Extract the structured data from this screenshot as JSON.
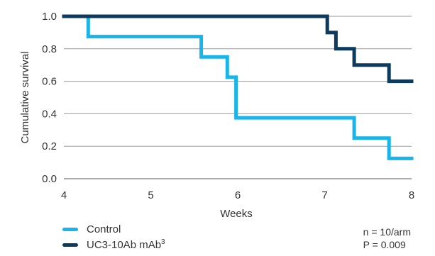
{
  "chart_data": {
    "type": "line",
    "step": true,
    "xlabel": "Weeks",
    "ylabel": "Cumulative survival",
    "xlim": [
      4,
      8
    ],
    "ylim": [
      0.0,
      1.0
    ],
    "x_ticks": [
      "4",
      "5",
      "6",
      "7",
      "8"
    ],
    "y_ticks": [
      "0.0",
      "0.2",
      "0.4",
      "0.6",
      "0.8",
      "1.0"
    ],
    "grid": "horizontal",
    "legend_position": "bottom-left",
    "series": [
      {
        "name": "Control",
        "color": "#19b4e8",
        "x": [
          4.0,
          4.28,
          4.28,
          5.58,
          5.58,
          5.88,
          5.88,
          5.98,
          5.98,
          7.34,
          7.34,
          7.74,
          7.74,
          8.0
        ],
        "y": [
          1.0,
          1.0,
          0.875,
          0.875,
          0.75,
          0.75,
          0.625,
          0.625,
          0.375,
          0.375,
          0.25,
          0.25,
          0.125,
          0.125
        ]
      },
      {
        "name": "UC3-10Ab mAb",
        "superscript": "3",
        "color": "#0e3a5e",
        "x": [
          4.0,
          7.03,
          7.03,
          7.13,
          7.13,
          7.34,
          7.34,
          7.74,
          7.74,
          8.0
        ],
        "y": [
          1.0,
          1.0,
          0.9,
          0.9,
          0.8,
          0.8,
          0.7,
          0.7,
          0.6,
          0.6
        ]
      }
    ],
    "annotations": [
      "n = 10/arm",
      "P = 0.009"
    ]
  }
}
